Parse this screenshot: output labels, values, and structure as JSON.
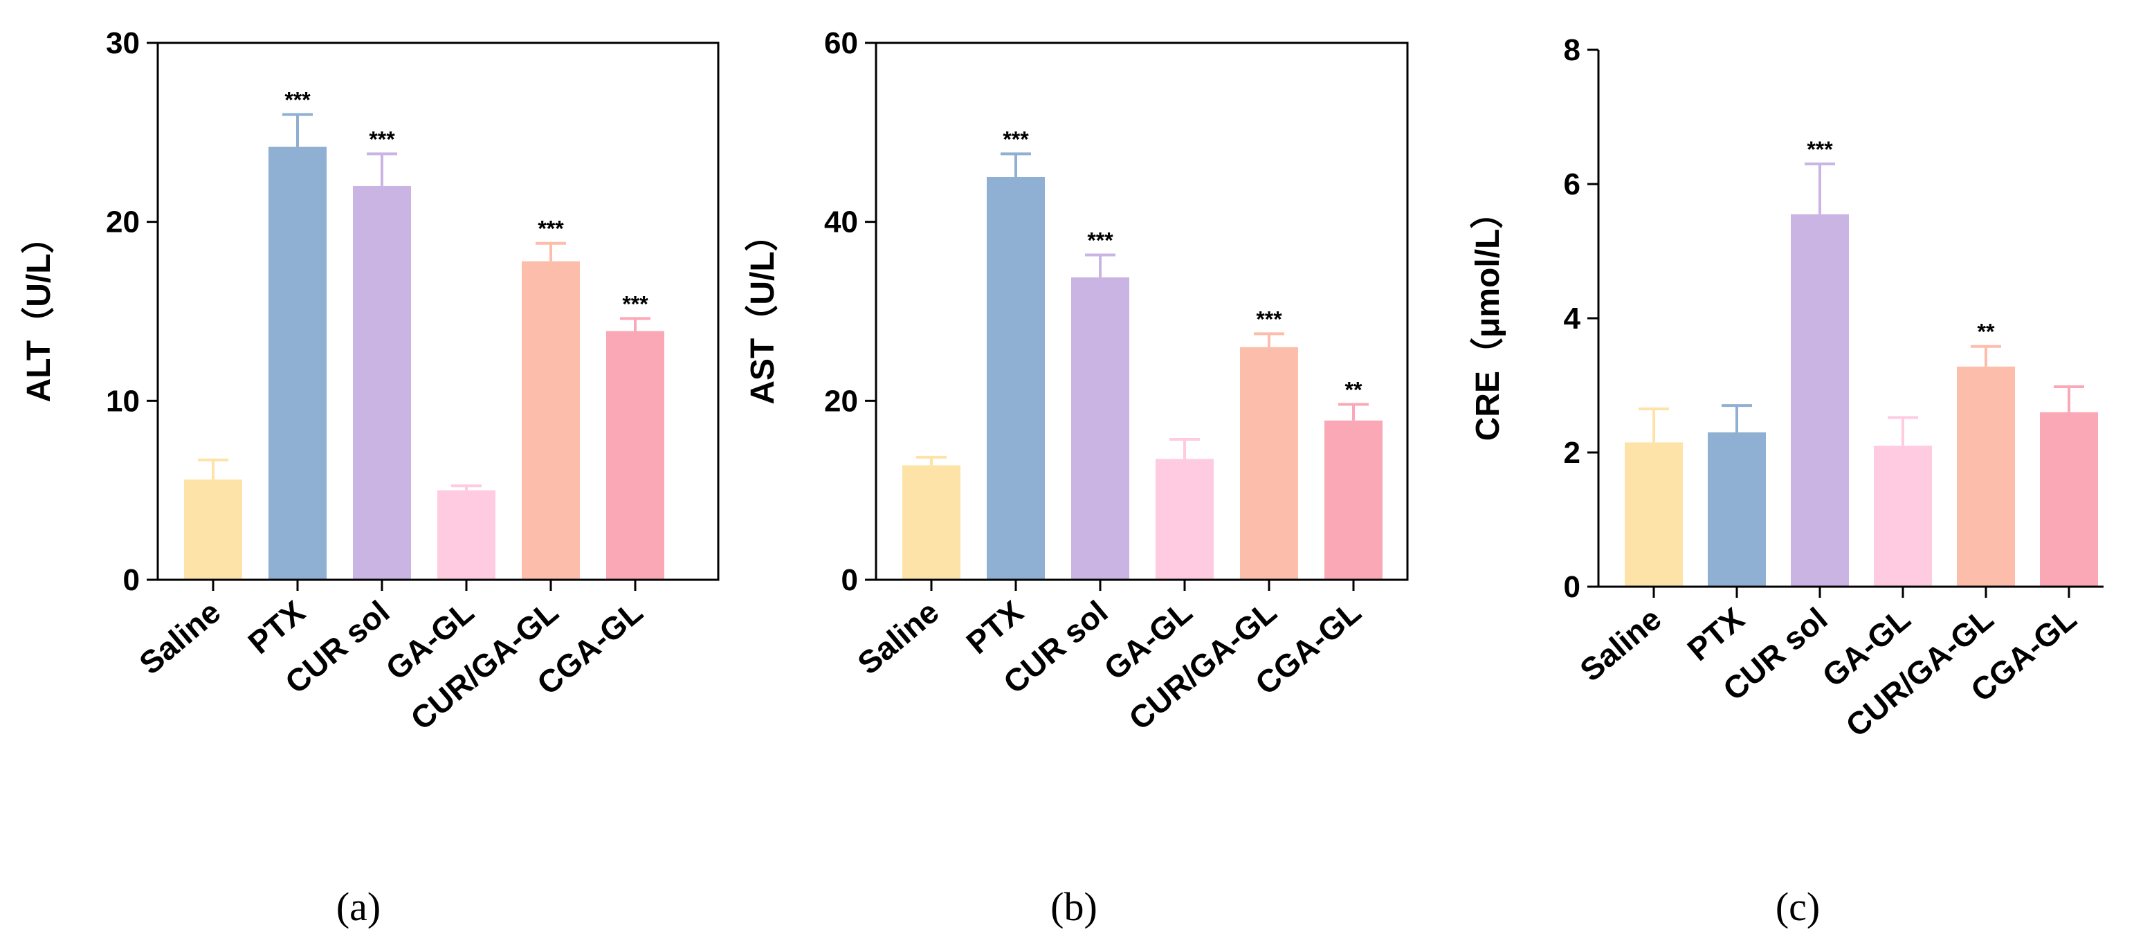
{
  "colors": [
    "#fde3a7",
    "#8fb0d3",
    "#c9b4e4",
    "#fecbe0",
    "#fdbdab",
    "#fba8b6"
  ],
  "chart_data": [
    {
      "type": "bar",
      "panel": "(a)",
      "ylabel": "ALT（U/L）",
      "categories": [
        "Saline",
        "PTX",
        "CUR sol",
        "GA-GL",
        "CUR/GA-GL",
        "CGA-GL"
      ],
      "values": [
        5.6,
        24.2,
        22.0,
        5.0,
        17.8,
        13.9
      ],
      "errors": [
        1.1,
        1.8,
        1.8,
        0.25,
        1.0,
        0.7
      ],
      "significance": [
        "",
        "***",
        "***",
        "",
        "***",
        "***"
      ],
      "ylim": [
        0,
        30
      ],
      "yticks": [
        0,
        10,
        20,
        30
      ],
      "ytick_labels": [
        "0",
        "10",
        "20",
        "30"
      ]
    },
    {
      "type": "bar",
      "panel": "(b)",
      "ylabel": "AST（U/L）",
      "categories": [
        "Saline",
        "PTX",
        "CUR sol",
        "GA-GL",
        "CUR/GA-GL",
        "CGA-GL"
      ],
      "values": [
        12.8,
        45.0,
        33.8,
        13.5,
        26.0,
        17.8
      ],
      "errors": [
        0.9,
        2.6,
        2.5,
        2.2,
        1.5,
        1.8
      ],
      "significance": [
        "",
        "***",
        "***",
        "",
        "***",
        "**"
      ],
      "ylim": [
        0,
        60
      ],
      "yticks": [
        0,
        20,
        40,
        60
      ],
      "ytick_labels": [
        "0",
        "20",
        "40",
        "60"
      ]
    },
    {
      "type": "bar",
      "panel": "(c)",
      "ylabel": "CRE（μmol/L）",
      "categories": [
        "Saline",
        "PTX",
        "CUR sol",
        "GA-GL",
        "CUR/GA-GL",
        "CGA-GL"
      ],
      "values": [
        2.15,
        2.3,
        5.55,
        2.1,
        3.28,
        2.6
      ],
      "errors": [
        0.5,
        0.4,
        0.75,
        0.42,
        0.3,
        0.38
      ],
      "significance": [
        "",
        "",
        "***",
        "",
        "**",
        ""
      ],
      "ylim": [
        0,
        8
      ],
      "yticks": [
        0,
        2,
        4,
        6,
        8
      ],
      "ytick_labels": [
        "0",
        "2",
        "4",
        "6",
        "8"
      ]
    }
  ]
}
